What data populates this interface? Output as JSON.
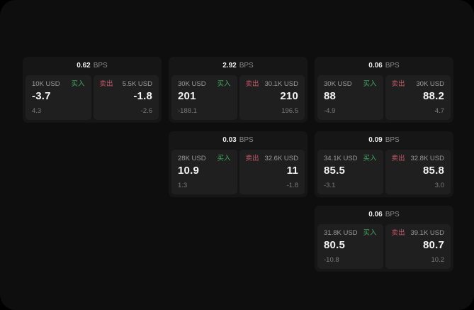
{
  "page": {
    "outer_bg": "#000000",
    "window_bg": "#0e0e0e"
  },
  "labels": {
    "bps_unit": "BPS",
    "buy": "买入",
    "sell": "卖出"
  },
  "colors": {
    "buy_text": "#42a85f",
    "sell_text": "#c75a6b",
    "card_bg": "#161616",
    "panel_bg": "#1f1f1f",
    "value_text": "#f3f3f3",
    "label_text": "#9b9b9b",
    "sub_text": "#7b7b7b"
  },
  "cards": [
    {
      "row": 1,
      "col": 1,
      "bps": "0.62",
      "buy": {
        "amount": "10K USD",
        "value": "-3.7",
        "sub": "4.3"
      },
      "sell": {
        "amount": "5.5K USD",
        "value": "-1.8",
        "sub": "-2.6"
      }
    },
    {
      "row": 1,
      "col": 2,
      "bps": "2.92",
      "buy": {
        "amount": "30K USD",
        "value": "201",
        "sub": "-188.1"
      },
      "sell": {
        "amount": "30.1K USD",
        "value": "210",
        "sub": "196.5"
      }
    },
    {
      "row": 1,
      "col": 3,
      "bps": "0.06",
      "buy": {
        "amount": "30K USD",
        "value": "88",
        "sub": "-4.9"
      },
      "sell": {
        "amount": "30K USD",
        "value": "88.2",
        "sub": "4.7"
      }
    },
    {
      "row": 2,
      "col": 2,
      "bps": "0.03",
      "buy": {
        "amount": "28K USD",
        "value": "10.9",
        "sub": "1.3"
      },
      "sell": {
        "amount": "32.6K USD",
        "value": "11",
        "sub": "-1.8"
      }
    },
    {
      "row": 2,
      "col": 3,
      "bps": "0.09",
      "buy": {
        "amount": "34.1K USD",
        "value": "85.5",
        "sub": "-3.1"
      },
      "sell": {
        "amount": "32.8K USD",
        "value": "85.8",
        "sub": "3.0"
      }
    },
    {
      "row": 3,
      "col": 3,
      "bps": "0.06",
      "buy": {
        "amount": "31.8K USD",
        "value": "80.5",
        "sub": "-10.8"
      },
      "sell": {
        "amount": "39.1K USD",
        "value": "80.7",
        "sub": "10.2"
      }
    }
  ]
}
